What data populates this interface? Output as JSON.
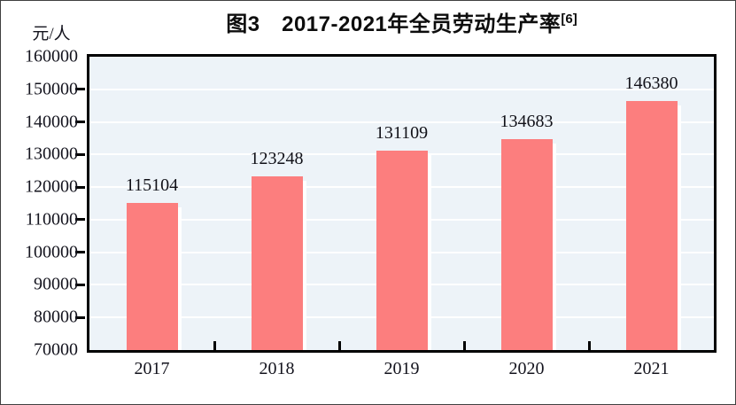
{
  "title": {
    "text": "图3　2017-2021年全员劳动生产率",
    "superscript": "[6]"
  },
  "y_axis": {
    "unit_label": "元/人"
  },
  "chart_data": {
    "type": "bar",
    "title": "图3 2017-2021年全员劳动生产率[6]",
    "categories": [
      "2017",
      "2018",
      "2019",
      "2020",
      "2021"
    ],
    "values": [
      115104,
      123248,
      131109,
      134683,
      146380
    ],
    "data_labels": [
      "115104",
      "123248",
      "131109",
      "134683",
      "146380"
    ],
    "xlabel": "",
    "ylabel": "元/人",
    "ylim": [
      70000,
      160000
    ],
    "ytick_step": 10000,
    "y_tick_labels": [
      "160000",
      "150000",
      "140000",
      "130000",
      "120000",
      "110000",
      "100000",
      "90000",
      "80000",
      "70000"
    ],
    "grid": true,
    "legend_position": "none",
    "bar_color": "#fc7e7e",
    "bar_shadow_color": "#ffffff",
    "plot_bg_color": "#edf3f8",
    "gridline_color": "#ffffff",
    "axis_color": "#000000"
  }
}
